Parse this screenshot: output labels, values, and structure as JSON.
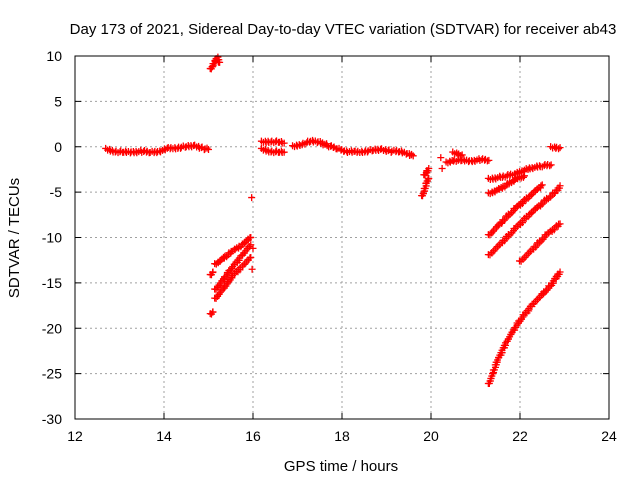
{
  "chart_data": {
    "type": "scatter",
    "title": "Day 173 of 2021, Sidereal Day-to-day VTEC variation (SDTVAR) for receiver ab43",
    "xlabel": "GPS time / hours",
    "ylabel": "SDTVAR / TECUs",
    "xlim": [
      12,
      24
    ],
    "ylim": [
      -30,
      10
    ],
    "xticks": [
      "12",
      "14",
      "16",
      "18",
      "20",
      "22",
      "24"
    ],
    "yticks": [
      "10",
      "5",
      "0",
      "-5",
      "-10",
      "-15",
      "-20",
      "-25",
      "-30"
    ],
    "grid": true,
    "marker": "+",
    "color": "#ff0000",
    "series": [
      {
        "values": [
          [
            12.7,
            -0.3
          ],
          [
            12.9,
            -0.5
          ],
          [
            13.1,
            -0.6
          ],
          [
            13.3,
            -0.6
          ],
          [
            13.5,
            -0.5
          ],
          [
            13.7,
            -0.6
          ],
          [
            13.9,
            -0.5
          ],
          [
            14.1,
            -0.2
          ],
          [
            14.3,
            -0.1
          ],
          [
            14.5,
            0.0
          ],
          [
            14.7,
            0.1
          ],
          [
            14.9,
            -0.2
          ],
          [
            15.0,
            -0.3
          ]
        ]
      },
      {
        "values": [
          [
            15.05,
            8.5
          ],
          [
            15.1,
            9.0
          ],
          [
            15.15,
            9.5
          ],
          [
            15.2,
            9.8
          ],
          [
            15.25,
            9.3
          ]
        ]
      },
      {
        "values": [
          [
            15.05,
            -18.5
          ],
          [
            15.1,
            -18.2
          ]
        ]
      },
      {
        "values": [
          [
            15.05,
            -14.2
          ],
          [
            15.1,
            -13.8
          ]
        ]
      },
      {
        "values": [
          [
            15.15,
            -13.0
          ],
          [
            15.35,
            -12.2
          ],
          [
            15.55,
            -11.5
          ],
          [
            15.75,
            -10.8
          ],
          [
            15.95,
            -10.0
          ]
        ]
      },
      {
        "values": [
          [
            15.15,
            -15.8
          ],
          [
            15.35,
            -14.5
          ],
          [
            15.55,
            -13.2
          ],
          [
            15.75,
            -12.0
          ],
          [
            15.95,
            -10.8
          ]
        ]
      },
      {
        "values": [
          [
            15.15,
            -16.8
          ],
          [
            15.35,
            -15.5
          ],
          [
            15.55,
            -14.2
          ],
          [
            15.75,
            -13.2
          ],
          [
            15.95,
            -12.2
          ]
        ]
      },
      {
        "values": [
          [
            15.97,
            -5.6
          ]
        ]
      },
      {
        "values": [
          [
            16.0,
            -11.2
          ]
        ]
      },
      {
        "values": [
          [
            15.98,
            -13.5
          ]
        ]
      },
      {
        "values": [
          [
            16.2,
            0.5
          ],
          [
            16.4,
            0.6
          ],
          [
            16.6,
            0.5
          ],
          [
            16.7,
            0.4
          ]
        ]
      },
      {
        "values": [
          [
            16.2,
            -0.3
          ],
          [
            16.4,
            -0.5
          ],
          [
            16.6,
            -0.6
          ],
          [
            16.7,
            -0.6
          ]
        ]
      },
      {
        "values": [
          [
            16.9,
            0.0
          ],
          [
            17.1,
            0.3
          ],
          [
            17.3,
            0.6
          ],
          [
            17.5,
            0.5
          ],
          [
            17.7,
            0.1
          ],
          [
            17.9,
            -0.2
          ],
          [
            18.1,
            -0.5
          ],
          [
            18.3,
            -0.6
          ],
          [
            18.5,
            -0.5
          ],
          [
            18.7,
            -0.4
          ],
          [
            18.9,
            -0.3
          ],
          [
            19.1,
            -0.5
          ],
          [
            19.3,
            -0.5
          ],
          [
            19.5,
            -0.8
          ],
          [
            19.6,
            -1.0
          ]
        ]
      },
      {
        "values": [
          [
            19.8,
            -5.5
          ],
          [
            19.85,
            -4.8
          ],
          [
            19.9,
            -4.0
          ],
          [
            19.95,
            -3.5
          ]
        ]
      },
      {
        "values": [
          [
            19.85,
            -3.2
          ],
          [
            19.9,
            -2.8
          ],
          [
            19.95,
            -2.4
          ]
        ]
      },
      {
        "values": [
          [
            20.22,
            -1.2
          ]
        ]
      },
      {
        "values": [
          [
            20.25,
            -2.4
          ]
        ]
      },
      {
        "values": [
          [
            20.35,
            -1.8
          ],
          [
            20.5,
            -1.5
          ],
          [
            20.7,
            -1.5
          ],
          [
            20.9,
            -1.6
          ],
          [
            21.1,
            -1.4
          ],
          [
            21.3,
            -1.5
          ]
        ]
      },
      {
        "values": [
          [
            20.5,
            -0.7
          ],
          [
            20.6,
            -0.8
          ],
          [
            20.7,
            -0.9
          ]
        ]
      },
      {
        "values": [
          [
            21.3,
            -3.6
          ],
          [
            21.6,
            -3.3
          ],
          [
            21.9,
            -3.0
          ],
          [
            22.2,
            -2.4
          ],
          [
            22.5,
            -2.1
          ],
          [
            22.7,
            -2.0
          ]
        ]
      },
      {
        "values": [
          [
            21.3,
            -5.2
          ],
          [
            21.6,
            -4.5
          ],
          [
            21.9,
            -3.6
          ],
          [
            22.1,
            -3.2
          ]
        ]
      },
      {
        "values": [
          [
            21.3,
            -9.8
          ],
          [
            21.6,
            -8.2
          ],
          [
            21.9,
            -6.8
          ],
          [
            22.2,
            -5.5
          ],
          [
            22.5,
            -4.2
          ]
        ]
      },
      {
        "values": [
          [
            21.3,
            -12.0
          ],
          [
            21.6,
            -10.5
          ],
          [
            21.9,
            -9.0
          ],
          [
            22.2,
            -7.5
          ],
          [
            22.5,
            -6.2
          ],
          [
            22.8,
            -5.0
          ],
          [
            22.9,
            -4.3
          ]
        ]
      },
      {
        "values": [
          [
            22.0,
            -12.7
          ],
          [
            22.3,
            -11.2
          ],
          [
            22.6,
            -9.7
          ],
          [
            22.9,
            -8.5
          ]
        ]
      },
      {
        "values": [
          [
            21.3,
            -26.2
          ],
          [
            21.4,
            -24.8
          ],
          [
            21.5,
            -23.5
          ],
          [
            21.7,
            -21.5
          ],
          [
            21.9,
            -19.8
          ],
          [
            22.1,
            -18.5
          ],
          [
            22.3,
            -17.3
          ],
          [
            22.5,
            -16.3
          ],
          [
            22.7,
            -15.2
          ],
          [
            22.9,
            -13.8
          ]
        ]
      },
      {
        "values": [
          [
            22.7,
            -0.1
          ],
          [
            22.8,
            -0.1
          ],
          [
            22.9,
            -0.1
          ]
        ]
      }
    ]
  }
}
